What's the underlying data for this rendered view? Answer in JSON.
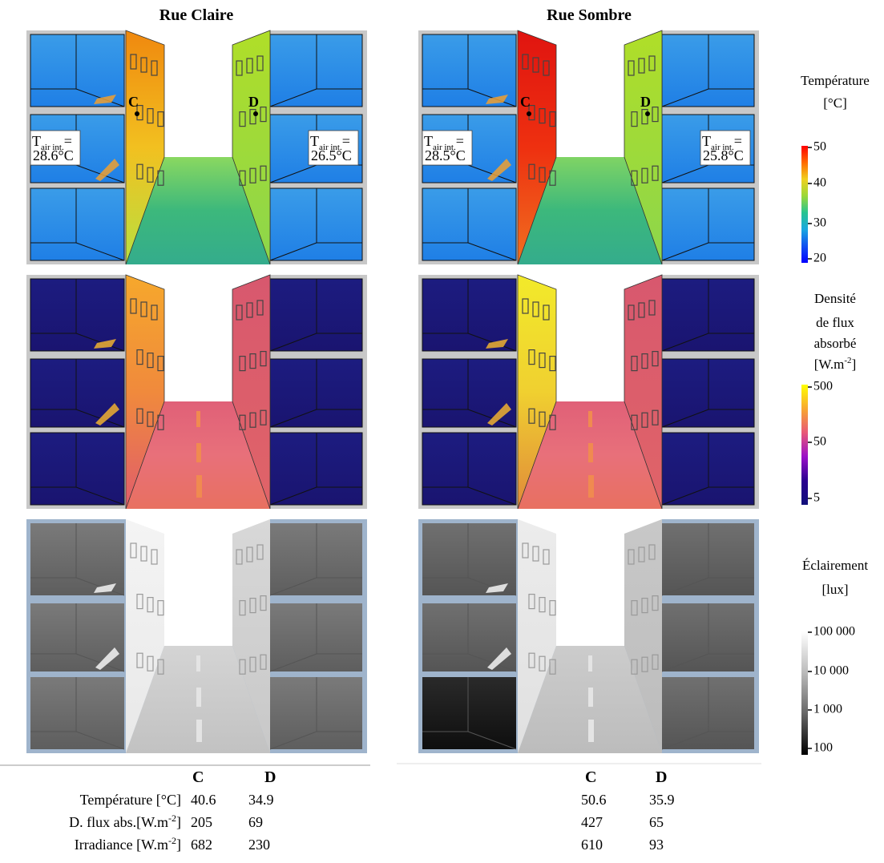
{
  "panels": {
    "titles": [
      "Rue Claire",
      "Rue Sombre"
    ]
  },
  "annotations": {
    "point_c": "C",
    "point_d": "D",
    "t_symbol": "T",
    "t_subscript": "air int.",
    "t_equals": "=",
    "t_values": [
      [
        "28.6°C",
        "26.5°C"
      ],
      [
        "28.5°C",
        "25.8°C"
      ]
    ]
  },
  "legends": [
    {
      "title_lines": [
        "Température",
        "[°C]"
      ],
      "ticks": [
        50,
        40,
        30,
        20
      ]
    },
    {
      "title_lines": [
        "Densité",
        "de flux",
        "absorbé"
      ],
      "unit": {
        "text": "[W.m",
        "sup": "-2",
        "close": "]"
      },
      "ticks": [
        500,
        50,
        5
      ]
    },
    {
      "title_lines": [
        "Éclairement",
        "[lux]"
      ],
      "ticks": [
        "100 000",
        "10 000",
        "1 000",
        100
      ]
    }
  ],
  "table": {
    "left_header": [
      "C",
      "D"
    ],
    "row_labels": [
      {
        "text": "Température [°C]"
      },
      {
        "text": "D. flux abs.[W.m",
        "sup": "-2",
        "close": "]"
      },
      {
        "text": "Irradiance [W.m",
        "sup": "-2",
        "close": "]"
      }
    ],
    "left_values": [
      [
        40.6,
        34.9
      ],
      [
        205,
        69
      ],
      [
        682,
        230
      ]
    ],
    "right_header": [
      "C",
      "D"
    ],
    "right_values": [
      [
        50.6,
        35.9
      ],
      [
        427,
        65
      ],
      [
        610,
        93
      ]
    ]
  }
}
